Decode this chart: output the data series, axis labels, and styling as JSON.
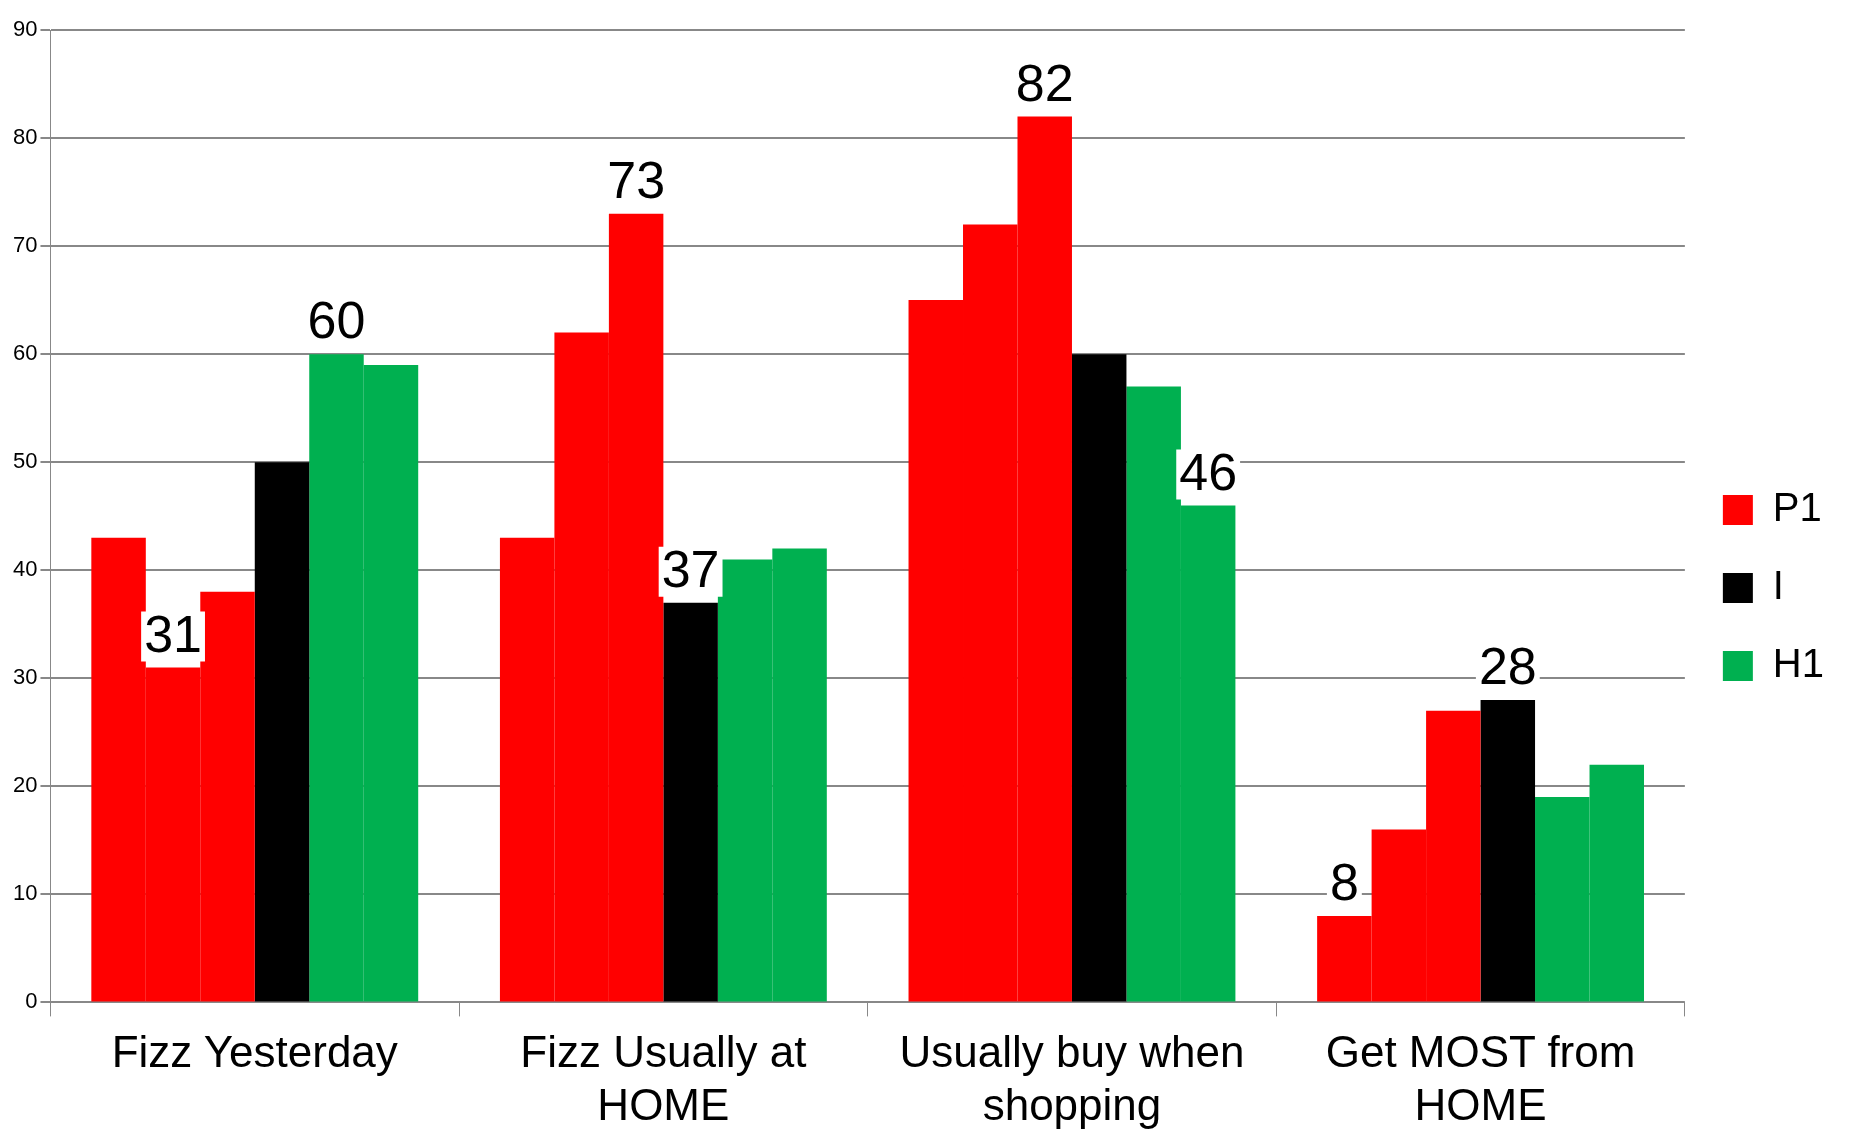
{
  "chart_data": {
    "type": "bar",
    "categories": [
      "Fizz Yesterday",
      "Fizz Usually at HOME",
      "Usually buy when shopping",
      "Get MOST from HOME"
    ],
    "series": [
      {
        "name": "P1",
        "color": "#ff0000",
        "values": [
          43,
          43,
          65,
          8
        ],
        "value_labels": [
          null,
          null,
          null,
          "8"
        ]
      },
      {
        "color": "#ff0000",
        "values": [
          31,
          62,
          72,
          16
        ],
        "value_labels": [
          "31",
          null,
          null,
          null
        ]
      },
      {
        "color": "#ff0000",
        "values": [
          38,
          73,
          82,
          27
        ],
        "value_labels": [
          null,
          "73",
          "82",
          null
        ]
      },
      {
        "name": "I",
        "color": "#000000",
        "values": [
          50,
          37,
          60,
          28
        ],
        "value_labels": [
          null,
          "37",
          null,
          "28"
        ]
      },
      {
        "name": "H1",
        "color": "#00b050",
        "values": [
          60,
          41,
          57,
          19
        ],
        "value_labels": [
          "60",
          null,
          null,
          null
        ]
      },
      {
        "color": "#00b050",
        "values": [
          59,
          42,
          46,
          22
        ],
        "value_labels": [
          null,
          null,
          "46",
          null
        ]
      }
    ],
    "ylim": [
      0,
      90
    ],
    "yticks": [
      0,
      10,
      20,
      30,
      40,
      50,
      60,
      70,
      80,
      90
    ],
    "grid": "y",
    "legend": "right"
  }
}
